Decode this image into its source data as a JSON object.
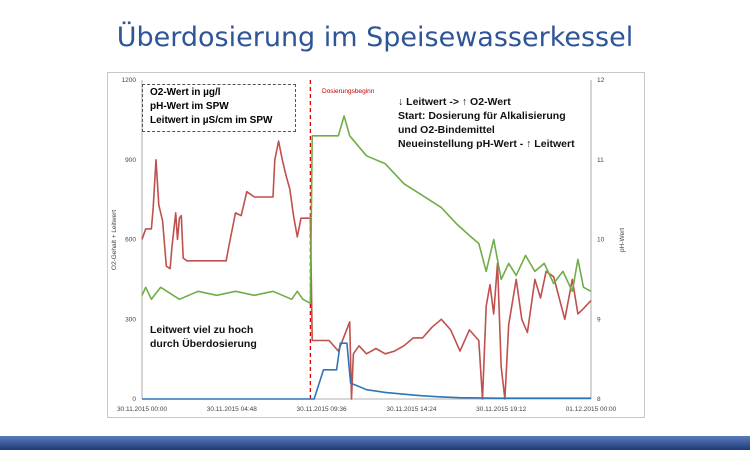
{
  "slide": {
    "title": "Überdosierung im Speisewasserkessel"
  },
  "colors": {
    "o2": "#2e75b6",
    "ph": "#70ad47",
    "lw": "#c0504d",
    "marker": "#e00000",
    "title": "#2e5597"
  },
  "chart_data": {
    "type": "line",
    "xlabel": "",
    "ylabel_left": "O2-Gehalt + Leitwert",
    "ylabel_right": "pH-Wert",
    "ylim_left": [
      0,
      1200
    ],
    "ylim_right": [
      8,
      12
    ],
    "xlim_hours": [
      0,
      24
    ],
    "x_ticks": [
      "30.11.2015 00:00",
      "30.11.2015 04:48",
      "30.11.2015 09:36",
      "30.11.2015 14:24",
      "30.11.2015 19:12",
      "01.12.2015 00:00"
    ],
    "y_ticks_left": [
      "0",
      "300",
      "600",
      "900",
      "1200"
    ],
    "y_ticks_right": [
      "8",
      "9",
      "10",
      "11",
      "12"
    ],
    "grid": false,
    "legend": {
      "position": "top-left",
      "entries": [
        "O2-Wert in µg/l",
        "pH-Wert im SPW",
        "Leitwert in µS/cm im SPW"
      ]
    },
    "vline": {
      "x": 9.0,
      "label": "Dosierungsbeginn"
    },
    "annotations": [
      "↓ Leitwert -> ↑ O2-Wert",
      "Start: Dosierung für Alkalisierung",
      "und O2-Bindemittel",
      "Neueinstellung pH-Wert - ↑ Leitwert",
      "Leitwert viel zu hoch",
      "durch Überdosierung"
    ],
    "series": [
      {
        "name": "O2-Wert in µg/l",
        "axis": "left",
        "points": [
          [
            0,
            0
          ],
          [
            9.05,
            0
          ],
          [
            9.2,
            0
          ],
          [
            9.7,
            110
          ],
          [
            10.4,
            110
          ],
          [
            10.6,
            210
          ],
          [
            10.95,
            210
          ],
          [
            11.15,
            60
          ],
          [
            11.5,
            50
          ],
          [
            12,
            35
          ],
          [
            13,
            25
          ],
          [
            14,
            18
          ],
          [
            15,
            12
          ],
          [
            16,
            8
          ],
          [
            17,
            5
          ],
          [
            18,
            4
          ],
          [
            19,
            3
          ],
          [
            20,
            3
          ],
          [
            22,
            3
          ],
          [
            24,
            3
          ]
        ]
      },
      {
        "name": "pH-Wert im SPW",
        "axis": "right",
        "points": [
          [
            0,
            9.3
          ],
          [
            0.2,
            9.4
          ],
          [
            0.5,
            9.25
          ],
          [
            1,
            9.4
          ],
          [
            2,
            9.25
          ],
          [
            3,
            9.35
          ],
          [
            4,
            9.3
          ],
          [
            5,
            9.35
          ],
          [
            6,
            9.3
          ],
          [
            7,
            9.35
          ],
          [
            8,
            9.25
          ],
          [
            8.3,
            9.35
          ],
          [
            8.6,
            9.25
          ],
          [
            9.0,
            9.2
          ],
          [
            9.1,
            11.3
          ],
          [
            10.5,
            11.3
          ],
          [
            10.8,
            11.55
          ],
          [
            11.1,
            11.3
          ],
          [
            12,
            11.05
          ],
          [
            13,
            10.95
          ],
          [
            14,
            10.7
          ],
          [
            15,
            10.55
          ],
          [
            16,
            10.4
          ],
          [
            16.8,
            10.2
          ],
          [
            17.5,
            10.05
          ],
          [
            18,
            9.95
          ],
          [
            18.4,
            9.6
          ],
          [
            18.8,
            10.0
          ],
          [
            19.2,
            9.5
          ],
          [
            19.6,
            9.7
          ],
          [
            20,
            9.55
          ],
          [
            20.5,
            9.8
          ],
          [
            21,
            9.6
          ],
          [
            21.5,
            9.7
          ],
          [
            22,
            9.45
          ],
          [
            22.5,
            9.6
          ],
          [
            23,
            9.35
          ],
          [
            23.3,
            9.75
          ],
          [
            23.6,
            9.4
          ],
          [
            24,
            9.35
          ]
        ]
      },
      {
        "name": "Leitwert in µS/cm im SPW",
        "axis": "left",
        "points": [
          [
            0,
            600
          ],
          [
            0.2,
            640
          ],
          [
            0.5,
            640
          ],
          [
            0.6,
            720
          ],
          [
            0.75,
            900
          ],
          [
            0.9,
            730
          ],
          [
            1.1,
            670
          ],
          [
            1.3,
            500
          ],
          [
            1.5,
            490
          ],
          [
            1.6,
            570
          ],
          [
            1.8,
            700
          ],
          [
            1.9,
            600
          ],
          [
            2.0,
            680
          ],
          [
            2.1,
            690
          ],
          [
            2.2,
            530
          ],
          [
            2.4,
            520
          ],
          [
            3,
            520
          ],
          [
            4,
            520
          ],
          [
            4.5,
            520
          ],
          [
            4.6,
            560
          ],
          [
            5.0,
            700
          ],
          [
            5.3,
            690
          ],
          [
            5.6,
            780
          ],
          [
            6.0,
            760
          ],
          [
            6.5,
            760
          ],
          [
            7.0,
            760
          ],
          [
            7.1,
            900
          ],
          [
            7.3,
            970
          ],
          [
            7.5,
            900
          ],
          [
            7.7,
            840
          ],
          [
            7.9,
            790
          ],
          [
            8.1,
            690
          ],
          [
            8.3,
            610
          ],
          [
            8.5,
            680
          ],
          [
            9.0,
            680
          ],
          [
            9.1,
            220
          ],
          [
            10,
            220
          ],
          [
            10.5,
            180
          ],
          [
            11.1,
            290
          ],
          [
            11.2,
            0
          ],
          [
            11.3,
            170
          ],
          [
            11.6,
            200
          ],
          [
            12.0,
            170
          ],
          [
            12.5,
            190
          ],
          [
            13,
            170
          ],
          [
            13.5,
            180
          ],
          [
            14,
            200
          ],
          [
            14.5,
            230
          ],
          [
            15,
            230
          ],
          [
            15.5,
            270
          ],
          [
            16,
            300
          ],
          [
            16.5,
            260
          ],
          [
            17,
            180
          ],
          [
            17.5,
            260
          ],
          [
            18,
            220
          ],
          [
            18.2,
            0
          ],
          [
            18.4,
            350
          ],
          [
            18.6,
            430
          ],
          [
            18.8,
            320
          ],
          [
            19.0,
            510
          ],
          [
            19.2,
            120
          ],
          [
            19.4,
            0
          ],
          [
            19.6,
            280
          ],
          [
            20,
            450
          ],
          [
            20.3,
            300
          ],
          [
            20.6,
            250
          ],
          [
            21,
            450
          ],
          [
            21.3,
            380
          ],
          [
            21.6,
            480
          ],
          [
            22,
            460
          ],
          [
            22.3,
            380
          ],
          [
            22.6,
            300
          ],
          [
            23,
            450
          ],
          [
            23.3,
            320
          ],
          [
            23.6,
            340
          ],
          [
            24,
            370
          ]
        ]
      }
    ]
  }
}
